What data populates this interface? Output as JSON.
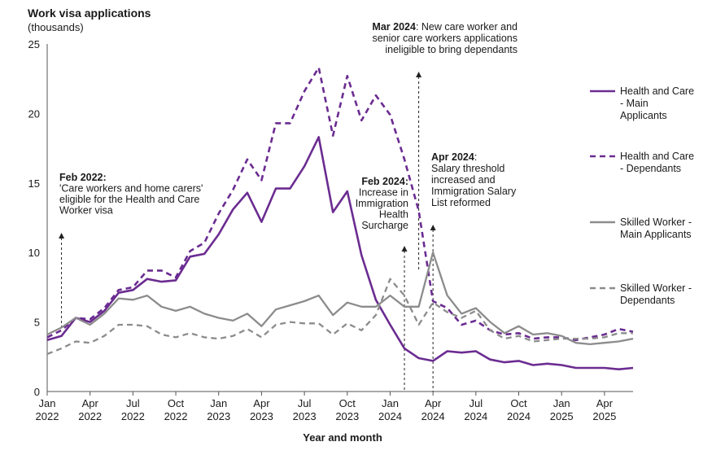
{
  "chart_data": {
    "type": "line",
    "title": "Work visa applications",
    "subtitle": "(thousands)",
    "xlabel": "Year and month",
    "ylabel": "",
    "ylim": [
      0,
      25
    ],
    "yticks": [
      0,
      5,
      10,
      15,
      20,
      25
    ],
    "x": [
      "2022-01",
      "2022-02",
      "2022-03",
      "2022-04",
      "2022-05",
      "2022-06",
      "2022-07",
      "2022-08",
      "2022-09",
      "2022-10",
      "2022-11",
      "2022-12",
      "2023-01",
      "2023-02",
      "2023-03",
      "2023-04",
      "2023-05",
      "2023-06",
      "2023-07",
      "2023-08",
      "2023-09",
      "2023-10",
      "2023-11",
      "2023-12",
      "2024-01",
      "2024-02",
      "2024-03",
      "2024-04",
      "2024-05",
      "2024-06",
      "2024-07",
      "2024-08",
      "2024-09",
      "2024-10",
      "2024-11",
      "2024-12",
      "2025-01",
      "2025-02",
      "2025-03",
      "2025-04",
      "2025-05",
      "2025-06"
    ],
    "xticks": [
      {
        "index": 0,
        "month": "Jan",
        "year": "2022"
      },
      {
        "index": 3,
        "month": "Apr",
        "year": "2022"
      },
      {
        "index": 6,
        "month": "Jul",
        "year": "2022"
      },
      {
        "index": 9,
        "month": "Oct",
        "year": "2022"
      },
      {
        "index": 12,
        "month": "Jan",
        "year": "2023"
      },
      {
        "index": 15,
        "month": "Apr",
        "year": "2023"
      },
      {
        "index": 18,
        "month": "Jul",
        "year": "2023"
      },
      {
        "index": 21,
        "month": "Oct",
        "year": "2023"
      },
      {
        "index": 24,
        "month": "Jan",
        "year": "2024"
      },
      {
        "index": 27,
        "month": "Apr",
        "year": "2024"
      },
      {
        "index": 30,
        "month": "Jul",
        "year": "2024"
      },
      {
        "index": 33,
        "month": "Oct",
        "year": "2024"
      },
      {
        "index": 36,
        "month": "Jan",
        "year": "2025"
      },
      {
        "index": 39,
        "month": "Apr",
        "year": "2025"
      }
    ],
    "series": [
      {
        "name": "Health and Care - Main Applicants",
        "legend_lines": [
          "Health and Care",
          "- Main",
          "Applicants"
        ],
        "color": "#6b2c91",
        "dashed": false,
        "values": [
          3.7,
          4.0,
          5.3,
          5.0,
          5.8,
          7.1,
          7.3,
          8.1,
          7.9,
          8.0,
          9.7,
          9.9,
          11.3,
          13.1,
          14.3,
          12.2,
          14.6,
          14.6,
          16.2,
          18.3,
          12.9,
          14.4,
          9.8,
          6.6,
          4.8,
          3.1,
          2.4,
          2.2,
          2.9,
          2.8,
          2.9,
          2.3,
          2.1,
          2.2,
          1.9,
          2.0,
          1.9,
          1.7,
          1.7,
          1.7,
          1.6,
          1.7
        ]
      },
      {
        "name": "Health and Care - Dependants",
        "legend_lines": [
          "Health and Care",
          "- Dependants"
        ],
        "color": "#6b2c91",
        "dashed": true,
        "values": [
          3.9,
          4.4,
          5.3,
          5.2,
          6.0,
          7.3,
          7.5,
          8.7,
          8.7,
          8.2,
          10.1,
          10.7,
          12.8,
          14.5,
          16.7,
          15.2,
          19.3,
          19.3,
          21.6,
          23.3,
          18.4,
          22.7,
          19.5,
          21.3,
          19.9,
          16.7,
          13.0,
          6.5,
          6.0,
          4.8,
          5.1,
          4.4,
          4.1,
          4.2,
          3.8,
          3.9,
          3.9,
          3.7,
          3.9,
          4.1,
          4.5,
          4.3
        ]
      },
      {
        "name": "Skilled Worker - Main Applicants",
        "legend_lines": [
          "Skilled Worker -",
          "Main Applicants"
        ],
        "color": "#8c8c8c",
        "dashed": false,
        "values": [
          4.1,
          4.6,
          5.3,
          4.8,
          5.6,
          6.7,
          6.6,
          6.9,
          6.1,
          5.8,
          6.1,
          5.6,
          5.3,
          5.1,
          5.6,
          4.7,
          5.9,
          6.2,
          6.5,
          6.9,
          5.5,
          6.4,
          6.1,
          6.1,
          6.9,
          6.1,
          6.1,
          10.0,
          6.9,
          5.6,
          6.0,
          5.0,
          4.2,
          4.7,
          4.1,
          4.2,
          4.0,
          3.5,
          3.4,
          3.5,
          3.6,
          3.8
        ]
      },
      {
        "name": "Skilled Worker - Dependants",
        "legend_lines": [
          "Skilled Worker -",
          "Dependants"
        ],
        "color": "#8c8c8c",
        "dashed": true,
        "values": [
          2.7,
          3.1,
          3.6,
          3.5,
          4.0,
          4.8,
          4.8,
          4.7,
          4.1,
          3.9,
          4.2,
          3.9,
          3.8,
          4.0,
          4.5,
          3.9,
          4.8,
          5.0,
          4.9,
          4.9,
          4.1,
          4.9,
          4.4,
          5.5,
          8.1,
          6.9,
          4.8,
          6.4,
          5.7,
          5.3,
          5.8,
          4.4,
          3.8,
          4.0,
          3.6,
          3.7,
          3.8,
          3.8,
          3.8,
          3.9,
          4.2,
          4.2
        ]
      }
    ],
    "annotations": [
      {
        "bold": "Feb 2022:",
        "rest": [
          "'Care workers and home carers'",
          "eligible for the Health and Care",
          "Worker visa"
        ],
        "anchor": "start",
        "arrow_index": 1
      },
      {
        "bold": "Feb 2024:",
        "rest": [
          "Increase in",
          "Immigration",
          "Health",
          "Surcharge"
        ],
        "anchor": "end",
        "arrow_index": 25
      },
      {
        "bold": "Mar 2024",
        "rest_first": ": New care worker and",
        "rest": [
          "senior care workers applications",
          "ineligible to bring dependants"
        ],
        "anchor": "end",
        "arrow_index": 26
      },
      {
        "bold": "Apr 2024",
        "rest_first": ":",
        "rest": [
          "Salary threshold",
          "increased and",
          "Immigration Salary",
          "List reformed"
        ],
        "anchor": "start",
        "arrow_index": 27
      }
    ]
  }
}
